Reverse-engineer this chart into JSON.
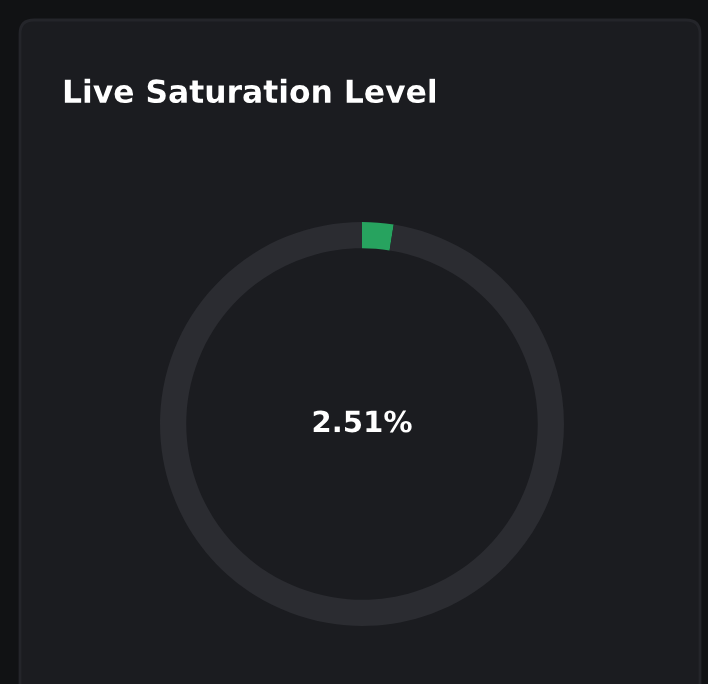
{
  "chart_data": {
    "type": "donut",
    "title": "Live Saturation Level",
    "categories": [
      null,
      null
    ],
    "values": [
      2.51,
      97.49
    ],
    "colors": [
      "#27a35f",
      "#2b2c31"
    ],
    "annotations": [
      "2.51%"
    ]
  }
}
